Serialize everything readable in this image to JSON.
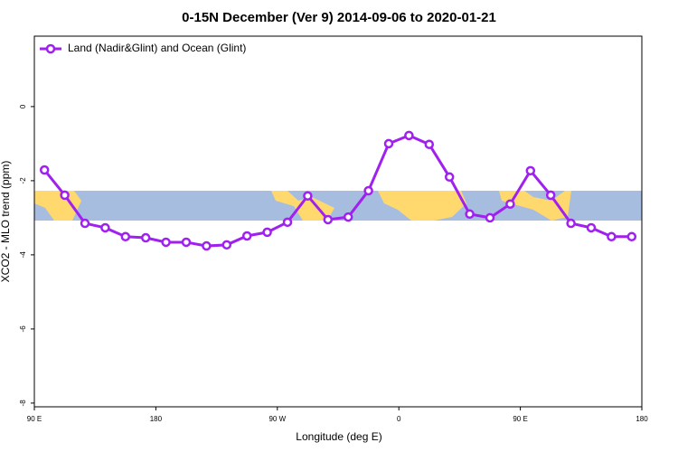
{
  "chart_data": {
    "type": "line",
    "title": "0-15N December (Ver 9)   2014-09-06 to 2020-01-21",
    "x_label": "Longitude (deg E)",
    "y_label": "XCO2 - MLO trend (ppm)",
    "x": [
      97.5,
      112.5,
      127.5,
      142.5,
      157.5,
      172.5,
      187.5,
      202.5,
      217.5,
      232.5,
      247.5,
      262.5,
      277.5,
      292.5,
      307.5,
      322.5,
      337.5,
      352.5,
      367.5,
      382.5,
      397.5,
      412.5,
      427.5,
      442.5,
      457.5,
      472.5,
      487.5,
      502.5,
      517.5,
      532.5
    ],
    "series": [
      {
        "name": "Land (Nadir&Glint) and Ocean (Glint)",
        "color": "#a020f0",
        "values": [
          -1.71,
          -2.39,
          -3.15,
          -3.27,
          -3.51,
          -3.54,
          -3.66,
          -3.66,
          -3.76,
          -3.73,
          -3.49,
          -3.39,
          -3.12,
          -2.41,
          -3.05,
          -2.98,
          -2.27,
          -1.0,
          -0.78,
          -1.02,
          -1.9,
          -2.9,
          -3.0,
          -2.63,
          -1.73,
          -2.39,
          -3.15,
          -3.27,
          -3.51,
          -3.51
        ]
      }
    ],
    "xlim": [
      90,
      540
    ],
    "xticks": [
      {
        "value": 90,
        "label": "90 E"
      },
      {
        "value": 180,
        "label": "180"
      },
      {
        "value": 270,
        "label": "90 W"
      },
      {
        "value": 360,
        "label": "0"
      },
      {
        "value": 450,
        "label": "90 E"
      },
      {
        "value": 540,
        "label": "180"
      }
    ],
    "ylim": [
      -8.1,
      1.9
    ],
    "yticks": [
      0,
      -2,
      -4,
      -6,
      -8
    ],
    "legend": "top-left"
  }
}
